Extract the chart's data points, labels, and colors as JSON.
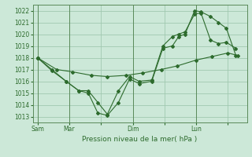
{
  "title": "Pression niveau de la mer( hPa )",
  "bg_color": "#cce8d8",
  "grid_color": "#a0c8b0",
  "line_color": "#2d6b2d",
  "ylim": [
    1012.5,
    1022.5
  ],
  "yticks": [
    1013,
    1014,
    1015,
    1016,
    1017,
    1018,
    1019,
    1020,
    1021,
    1022
  ],
  "xlim": [
    -0.15,
    6.6
  ],
  "xtick_labels": [
    "Sam",
    "Mar",
    "",
    "Dim",
    "",
    "Lun",
    ""
  ],
  "xtick_positions": [
    0,
    1,
    2,
    3,
    4,
    5,
    6
  ],
  "vlines": [
    0,
    1,
    3,
    5
  ],
  "series1_x": [
    0,
    0.45,
    0.9,
    1.3,
    1.6,
    1.9,
    2.2,
    2.55,
    2.9,
    3.2,
    3.6,
    3.95,
    4.25,
    4.45,
    4.65,
    4.95,
    5.15,
    5.45,
    5.7,
    5.95,
    6.25
  ],
  "series1_y": [
    1018,
    1017,
    1016,
    1015.2,
    1015.0,
    1013.3,
    1013.1,
    1014.2,
    1016.2,
    1015.8,
    1016.0,
    1018.8,
    1019.0,
    1019.8,
    1020.0,
    1022.0,
    1021.9,
    1021.5,
    1021.0,
    1020.5,
    1018.2
  ],
  "series2_x": [
    0,
    0.6,
    1.1,
    1.7,
    2.2,
    2.8,
    3.3,
    3.9,
    4.4,
    5.0,
    5.5,
    6.0,
    6.3
  ],
  "series2_y": [
    1018.0,
    1017.0,
    1016.8,
    1016.5,
    1016.4,
    1016.5,
    1016.7,
    1017.0,
    1017.3,
    1017.8,
    1018.1,
    1018.4,
    1018.2
  ],
  "series3_x": [
    0,
    0.45,
    0.9,
    1.3,
    1.6,
    1.9,
    2.2,
    2.55,
    2.9,
    3.2,
    3.6,
    3.95,
    4.25,
    4.45,
    4.65,
    4.95,
    5.15,
    5.45,
    5.7,
    5.95,
    6.25
  ],
  "series3_y": [
    1018,
    1016.9,
    1016.0,
    1015.2,
    1015.2,
    1014.2,
    1013.2,
    1015.2,
    1016.4,
    1016.0,
    1016.1,
    1019.0,
    1019.8,
    1020.0,
    1020.2,
    1021.7,
    1021.8,
    1019.5,
    1019.2,
    1019.3,
    1018.8
  ]
}
